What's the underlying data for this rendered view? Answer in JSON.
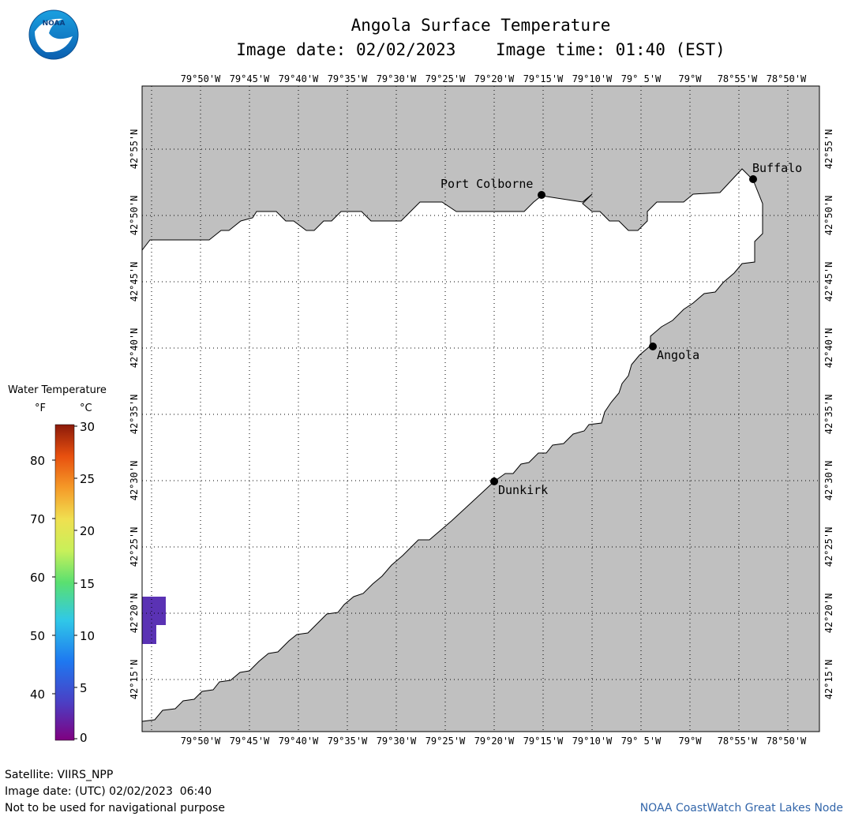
{
  "header": {
    "title": "Angola Surface Temperature",
    "image_date_label": "Image date: 02/02/2023",
    "image_time_label": "Image time: 01:40 (EST)"
  },
  "logo": {
    "text": "NOAA",
    "icon": "noaa-logo"
  },
  "map": {
    "land_color": "#c0c0c0",
    "water_color": "#ffffff",
    "lon_labels": [
      "79°50'W",
      "79°45'W",
      "79°40'W",
      "79°35'W",
      "79°30'W",
      "79°25'W",
      "79°20'W",
      "79°15'W",
      "79°10'W",
      "79° 5'W",
      "79°W",
      "78°55'W",
      "78°50'W"
    ],
    "lat_labels": [
      "42°55'N",
      "42°50'N",
      "42°45'N",
      "42°40'N",
      "42°35'N",
      "42°30'N",
      "42°25'N",
      "42°20'N",
      "42°15'N"
    ],
    "cities": [
      {
        "name": "Port Colborne",
        "lon": -79.25,
        "lat": 42.86
      },
      {
        "name": "Buffalo",
        "lon": -78.88,
        "lat": 42.88
      },
      {
        "name": "Angola",
        "lon": -79.03,
        "lat": 42.67
      },
      {
        "name": "Dunkirk",
        "lon": -79.33,
        "lat": 42.5
      }
    ],
    "anomaly_color": "#5a32b4"
  },
  "legend": {
    "title": "Water Temperature",
    "unit_f": "°F",
    "unit_c": "°C",
    "f_ticks": [
      "80",
      "70",
      "60",
      "50",
      "40"
    ],
    "c_ticks": [
      "30",
      "25",
      "20",
      "15",
      "10",
      "5",
      "0"
    ]
  },
  "footer": {
    "satellite": "Satellite: VIIRS_NPP",
    "utc_date": "Image date: (UTC) 02/02/2023  06:40",
    "disclaimer": "Not to be used for navigational purpose",
    "credit": "NOAA CoastWatch Great Lakes Node"
  }
}
